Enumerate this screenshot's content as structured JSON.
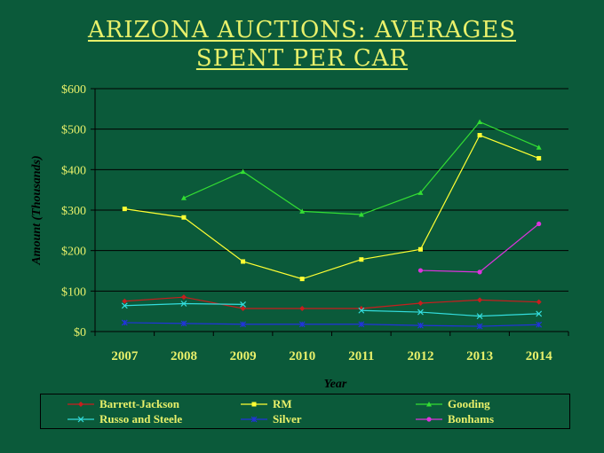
{
  "title_lines": [
    "Arizona Auctions: Averages",
    "Spent Per Car"
  ],
  "chart_data": {
    "type": "line",
    "title": "Arizona Auctions: Averages Spent Per Car",
    "xlabel": "Year",
    "ylabel": "Amount (Thousands)",
    "categories": [
      "2007",
      "2008",
      "2009",
      "2010",
      "2011",
      "2012",
      "2013",
      "2014"
    ],
    "ylim": [
      0,
      600
    ],
    "yticks": [
      0,
      100,
      200,
      300,
      400,
      500,
      600
    ],
    "ytick_labels": [
      "$0",
      "$100",
      "$200",
      "$300",
      "$400",
      "$500",
      "$600"
    ],
    "grid": true,
    "legend_position": "bottom",
    "series": [
      {
        "name": "Barrett-Jackson",
        "color": "#c81e1e",
        "marker": "diamond",
        "values": [
          75,
          85,
          57,
          57,
          57,
          70,
          78,
          73
        ]
      },
      {
        "name": "RM",
        "color": "#ffff33",
        "marker": "square",
        "values": [
          303,
          282,
          173,
          130,
          178,
          203,
          485,
          428
        ]
      },
      {
        "name": "Gooding",
        "color": "#33dd33",
        "marker": "triangle",
        "values": [
          null,
          330,
          395,
          297,
          289,
          343,
          518,
          455
        ]
      },
      {
        "name": "Russo and Steele",
        "color": "#33dddd",
        "marker": "x",
        "values": [
          64,
          69,
          67,
          null,
          52,
          48,
          38,
          44
        ]
      },
      {
        "name": "Silver",
        "color": "#2233dd",
        "marker": "star",
        "values": [
          22,
          20,
          18,
          18,
          18,
          15,
          13,
          17
        ]
      },
      {
        "name": "Bonhams",
        "color": "#dd33dd",
        "marker": "circle",
        "values": [
          null,
          null,
          null,
          null,
          null,
          151,
          147,
          266
        ]
      }
    ]
  }
}
